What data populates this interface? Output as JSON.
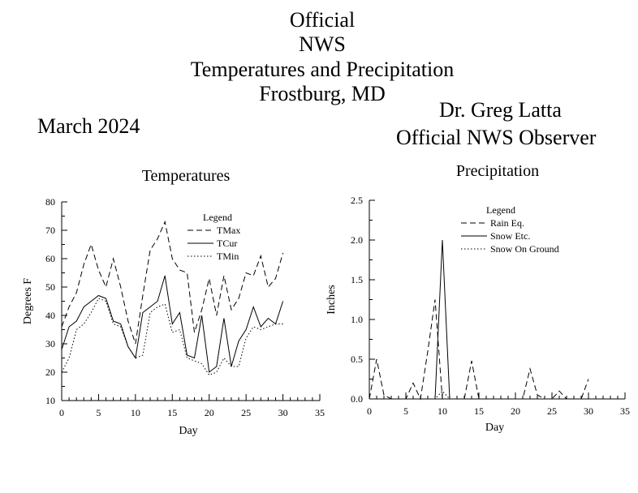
{
  "header": {
    "title_lines": [
      "Official",
      "NWS",
      "Temperatures and Precipitation",
      "Frostburg, MD"
    ],
    "period": "March 2024",
    "observer_name": "Dr. Greg Latta",
    "observer_role": "Official NWS Observer"
  },
  "chart_data": [
    {
      "type": "line",
      "title": "Temperatures",
      "xlabel": "Day",
      "ylabel": "Degrees F",
      "xlim": [
        0,
        35
      ],
      "ylim": [
        10,
        80
      ],
      "xticks": [
        0,
        5,
        10,
        15,
        20,
        25,
        30,
        35
      ],
      "yticks": [
        10,
        20,
        30,
        40,
        50,
        60,
        70,
        80
      ],
      "legend": {
        "title": "Legend",
        "position": "top-right"
      },
      "x": [
        0,
        1,
        2,
        3,
        4,
        5,
        6,
        7,
        8,
        9,
        10,
        11,
        12,
        13,
        14,
        15,
        16,
        17,
        18,
        19,
        20,
        21,
        22,
        23,
        24,
        25,
        26,
        27,
        28,
        29,
        30
      ],
      "series": [
        {
          "name": "TMax",
          "style": "dashed",
          "values": [
            36,
            43,
            48,
            58,
            65,
            56,
            50,
            60,
            50,
            38,
            30,
            47,
            63,
            67,
            73,
            60,
            56,
            55,
            34,
            42,
            53,
            40,
            54,
            42,
            46,
            55,
            54,
            61,
            50,
            53,
            62
          ]
        },
        {
          "name": "TCur",
          "style": "solid",
          "values": [
            28,
            36,
            38,
            43,
            45,
            47,
            46,
            38,
            37,
            29,
            25,
            41,
            43,
            45,
            54,
            37,
            41,
            26,
            25,
            40,
            20,
            22,
            39,
            22,
            31,
            35,
            43,
            36,
            39,
            37,
            45
          ]
        },
        {
          "name": "TMin",
          "style": "dotted",
          "values": [
            20,
            25,
            35,
            37,
            41,
            46,
            45,
            37,
            36,
            29,
            25,
            26,
            41,
            43,
            44,
            34,
            35,
            25,
            24,
            23,
            19,
            20,
            25,
            22,
            22,
            32,
            36,
            35,
            36,
            37,
            37
          ]
        }
      ]
    },
    {
      "type": "line",
      "title": "Precipitation",
      "xlabel": "Day",
      "ylabel": "Inches",
      "xlim": [
        0,
        35
      ],
      "ylim": [
        0,
        2.5
      ],
      "xticks": [
        0,
        5,
        10,
        15,
        20,
        25,
        30,
        35
      ],
      "yticks": [
        0.0,
        0.5,
        1.0,
        1.5,
        2.0,
        2.5
      ],
      "ytick_labels": [
        "0.0",
        "0.5",
        "1.0",
        "1.5",
        "2.0",
        "2.5"
      ],
      "legend": {
        "title": "Legend",
        "position": "top-right"
      },
      "x": [
        0,
        1,
        2,
        3,
        4,
        5,
        6,
        7,
        8,
        9,
        10,
        11,
        12,
        13,
        14,
        15,
        16,
        17,
        18,
        19,
        20,
        21,
        22,
        23,
        24,
        25,
        26,
        27,
        28,
        29,
        30
      ],
      "series": [
        {
          "name": "Rain Eq.",
          "style": "dashed",
          "values": [
            0,
            0.5,
            0.05,
            0,
            0,
            0,
            0.2,
            0,
            0.6,
            1.25,
            0,
            0,
            0,
            0,
            0.48,
            0,
            0,
            0,
            0,
            0,
            0,
            0,
            0.38,
            0.05,
            0,
            0,
            0.1,
            0,
            0,
            0,
            0.25
          ]
        },
        {
          "name": "Snow Etc.",
          "style": "solid",
          "values": [
            0,
            0,
            0,
            0,
            0,
            0,
            0,
            0,
            0,
            0,
            2.0,
            0,
            0,
            0,
            0,
            0,
            0,
            0,
            0,
            0,
            0,
            0,
            0,
            0,
            0,
            0,
            0,
            0,
            0,
            0,
            0
          ]
        },
        {
          "name": "Snow On Ground",
          "style": "dotted",
          "values": [
            0,
            0,
            0,
            0,
            0,
            0,
            0,
            0,
            0,
            0,
            0.1,
            0,
            0,
            0,
            0,
            0,
            0,
            0,
            0,
            0,
            0,
            0,
            0,
            0,
            0,
            0,
            0,
            0,
            0,
            0,
            0
          ]
        }
      ]
    }
  ]
}
